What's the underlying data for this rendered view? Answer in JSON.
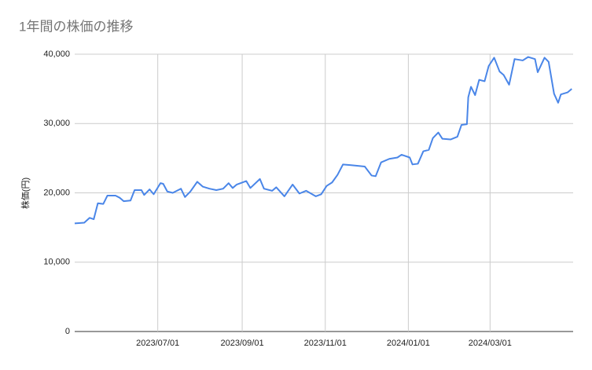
{
  "chart_data": {
    "type": "line",
    "title": "1年間の株価の推移",
    "y_label": "株価(円)",
    "xlim": [
      "2023/05/01",
      "2024/05/01"
    ],
    "xticks": [
      "2023/07/01",
      "2023/09/01",
      "2023/11/01",
      "2024/01/01",
      "2024/03/01"
    ],
    "ylim": [
      0,
      40000
    ],
    "yticks": [
      0,
      {
        "value": 10000,
        "label": "10,000"
      },
      {
        "value": 20000,
        "label": "20,000"
      },
      {
        "value": 30000,
        "label": "30,000"
      },
      {
        "value": 40000,
        "label": "40,000"
      }
    ],
    "grid": true,
    "x": [
      "2023/05/01",
      "2023/05/08",
      "2023/05/12",
      "2023/05/15",
      "2023/05/18",
      "2023/05/22",
      "2023/05/25",
      "2023/05/31",
      "2023/06/03",
      "2023/06/06",
      "2023/06/11",
      "2023/06/14",
      "2023/06/19",
      "2023/06/21",
      "2023/06/25",
      "2023/06/28",
      "2023/07/03",
      "2023/07/05",
      "2023/07/08",
      "2023/07/12",
      "2023/07/18",
      "2023/07/21",
      "2023/07/25",
      "2023/07/30",
      "2023/08/03",
      "2023/08/08",
      "2023/08/13",
      "2023/08/18",
      "2023/08/22",
      "2023/08/25",
      "2023/08/28",
      "2023/09/04",
      "2023/09/07",
      "2023/09/14",
      "2023/09/17",
      "2023/09/23",
      "2023/09/26",
      "2023/10/02",
      "2023/10/08",
      "2023/10/13",
      "2023/10/18",
      "2023/10/25",
      "2023/10/29",
      "2023/11/02",
      "2023/11/06",
      "2023/11/10",
      "2023/11/14",
      "2023/11/20",
      "2023/11/30",
      "2023/12/05",
      "2023/12/08",
      "2023/12/12",
      "2023/12/18",
      "2023/12/24",
      "2023/12/27",
      "2024/01/02",
      "2024/01/04",
      "2024/01/08",
      "2024/01/12",
      "2024/01/16",
      "2024/01/19",
      "2024/01/23",
      "2024/01/26",
      "2024/02/01",
      "2024/02/06",
      "2024/02/09",
      "2024/02/13",
      "2024/02/14",
      "2024/02/16",
      "2024/02/19",
      "2024/02/22",
      "2024/02/26",
      "2024/02/29",
      "2024/03/04",
      "2024/03/08",
      "2024/03/11",
      "2024/03/15",
      "2024/03/19",
      "2024/03/25",
      "2024/03/29",
      "2024/04/03",
      "2024/04/05",
      "2024/04/10",
      "2024/04/13",
      "2024/04/17",
      "2024/04/20",
      "2024/04/22",
      "2024/04/27",
      "2024/04/30"
    ],
    "series": [
      {
        "color": "#4a86e8",
        "values": [
          15600,
          15700,
          16400,
          16200,
          18500,
          18400,
          19600,
          19600,
          19300,
          18800,
          18900,
          20400,
          20400,
          19700,
          20500,
          19800,
          21400,
          21300,
          20200,
          20000,
          20600,
          19400,
          20200,
          21600,
          20900,
          20600,
          20400,
          20600,
          21400,
          20700,
          21200,
          21700,
          20700,
          22000,
          20600,
          20300,
          20800,
          19500,
          21200,
          19900,
          20300,
          19500,
          19800,
          21000,
          21500,
          22600,
          24100,
          24000,
          23800,
          22500,
          22400,
          24400,
          24900,
          25100,
          25500,
          25100,
          24100,
          24200,
          26000,
          26200,
          27900,
          28700,
          27800,
          27700,
          28100,
          29800,
          29900,
          33800,
          35300,
          34100,
          36300,
          36100,
          38300,
          39500,
          37500,
          37000,
          35600,
          39300,
          39100,
          39600,
          39300,
          37400,
          39500,
          38900,
          34300,
          33000,
          34200,
          34500,
          35000
        ]
      }
    ]
  }
}
